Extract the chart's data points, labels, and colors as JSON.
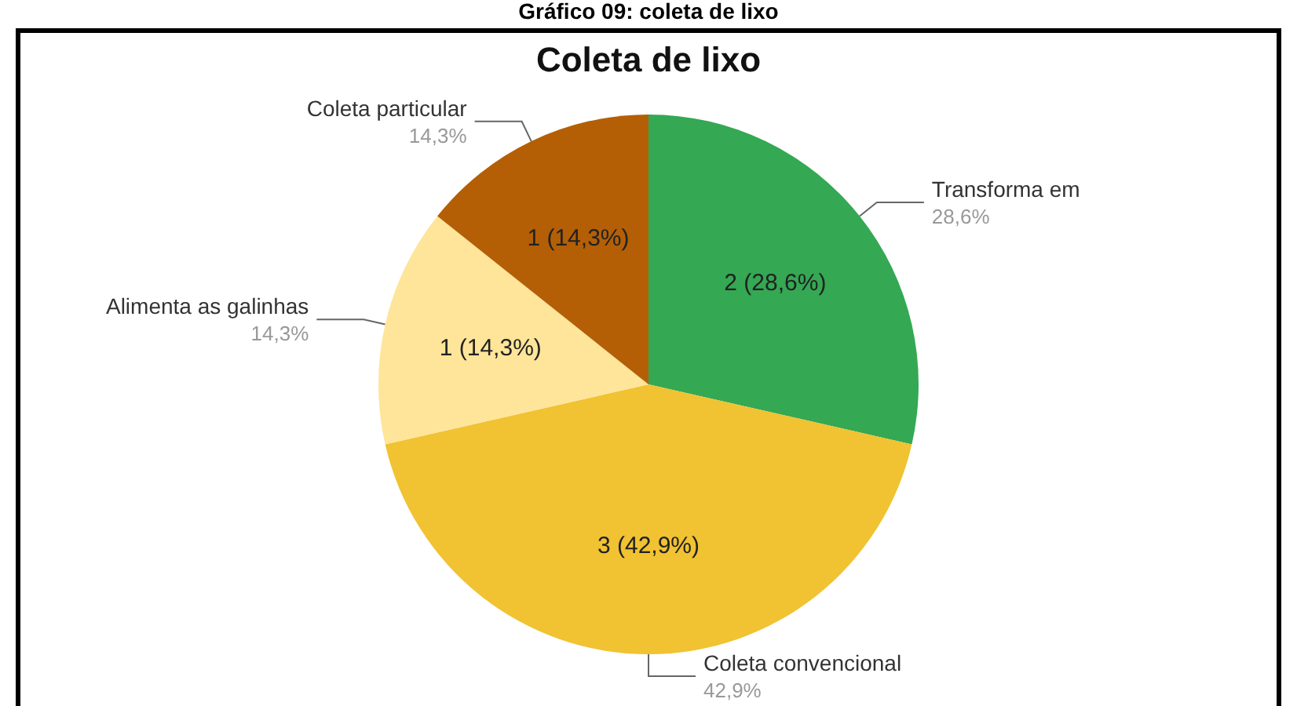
{
  "chart_data": {
    "type": "pie",
    "title": "Coleta de lixo",
    "annotations": [
      "Gráfico 09: coleta de lixo",
      {
        "text": "28,6%",
        "x": "Transforma em"
      },
      {
        "text": "42,9%",
        "x": "Coleta convencional"
      },
      {
        "text": "14,3%",
        "x": "Alimenta as galinhas"
      },
      {
        "text": "14,3%",
        "x": "Coleta particular"
      }
    ],
    "categories": [
      "Transforma em",
      "Coleta convencional",
      "Alimenta as galinhas",
      "Coleta particular"
    ],
    "values": [
      2,
      3,
      1,
      1
    ],
    "value_labels": [
      "2 (28,6%)",
      "3 (42,9%)",
      "1 (14,3%)",
      "1 (14,3%)"
    ],
    "colors": [
      "#34a853",
      "#f1c232",
      "#ffe599",
      "#b45f06"
    ],
    "legend": false
  }
}
